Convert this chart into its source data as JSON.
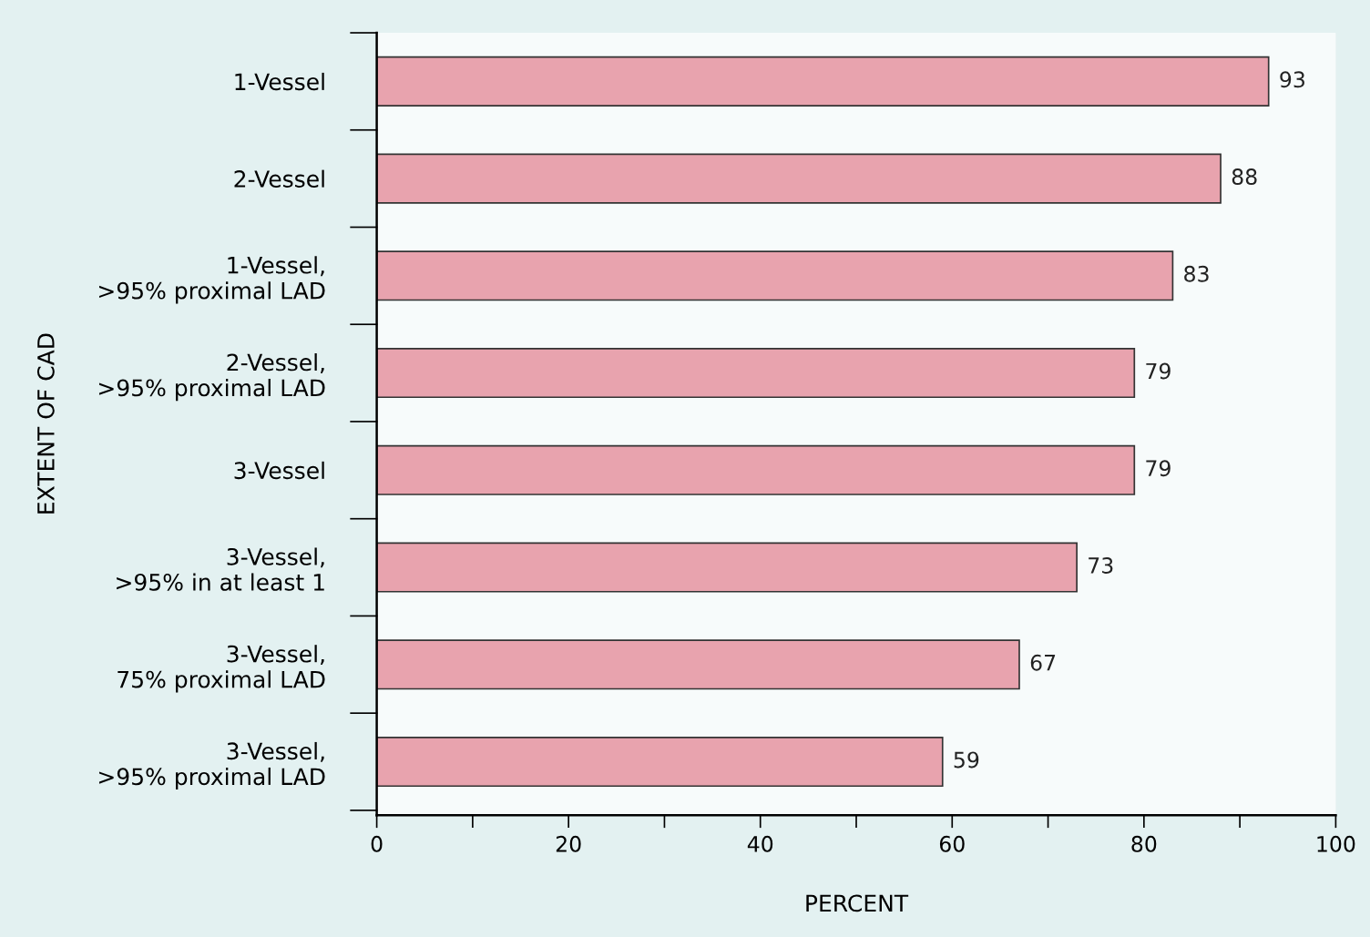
{
  "chart_data": {
    "type": "bar",
    "orientation": "horizontal",
    "xlabel": "PERCENT",
    "ylabel": "EXTENT OF CAD",
    "categories": [
      "1-Vessel",
      "2-Vessel",
      "1-Vessel,\n>95% proximal LAD",
      "2-Vessel,\n>95% proximal LAD",
      "3-Vessel",
      "3-Vessel,\n>95% in at least 1",
      "3-Vessel,\n75% proximal LAD",
      "3-Vessel,\n>95% proximal LAD"
    ],
    "values": [
      93,
      88,
      83,
      79,
      79,
      73,
      67,
      59
    ],
    "color": "#e8a3ae",
    "data_labels": true,
    "xlim": [
      0,
      100
    ],
    "xticks": [
      0,
      {
        "value": 10,
        "label": null
      },
      20,
      {
        "value": 30,
        "label": null
      },
      40,
      {
        "value": 50,
        "label": null
      },
      60,
      {
        "value": 70,
        "label": null
      },
      80,
      {
        "value": 90,
        "label": null
      },
      100
    ],
    "grid": false,
    "legend": false
  }
}
